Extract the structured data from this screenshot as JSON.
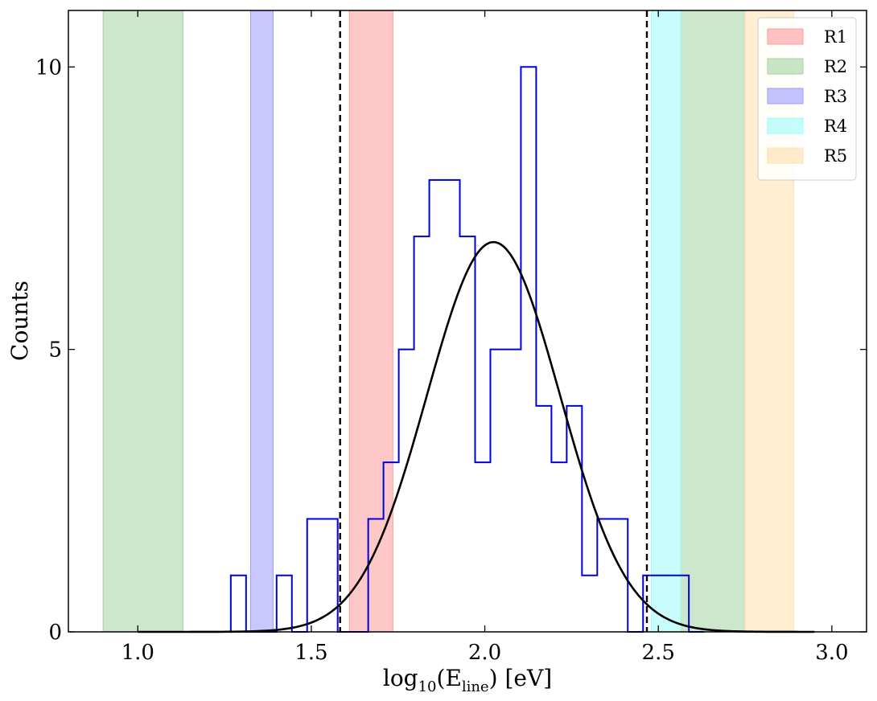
{
  "chart_data": {
    "type": "histogram",
    "xlabel_prefix": "log",
    "xlabel_sub1": "10",
    "xlabel_mid": "(E",
    "xlabel_sub2": "line",
    "xlabel_suffix": ") [eV]",
    "ylabel": "Counts",
    "xlim": [
      0.8,
      3.1
    ],
    "ylim": [
      0,
      11
    ],
    "xticks": [
      1.0,
      1.5,
      2.0,
      2.5,
      3.0
    ],
    "xtick_labels": [
      "1.0",
      "1.5",
      "2.0",
      "2.5",
      "3.0"
    ],
    "yticks": [
      0,
      5,
      10
    ],
    "ytick_labels": [
      "0",
      "5",
      "10"
    ],
    "bin_edges": [
      1.268,
      1.312,
      1.356,
      1.4,
      1.444,
      1.488,
      1.532,
      1.576,
      1.62,
      1.664,
      1.708,
      1.752,
      1.796,
      1.84,
      1.884,
      1.928,
      1.972,
      2.016,
      2.06,
      2.104,
      2.148,
      2.192,
      2.236,
      2.28,
      2.324,
      2.368,
      2.412,
      2.456,
      2.5,
      2.544,
      2.588,
      2.632
    ],
    "counts": [
      1,
      0,
      0,
      1,
      0,
      2,
      2,
      0,
      0,
      2,
      3,
      5,
      7,
      8,
      8,
      7,
      3,
      5,
      5,
      10,
      4,
      3,
      4,
      1,
      2,
      2,
      0,
      1,
      1,
      1,
      0
    ],
    "gaussian_fit": {
      "amplitude": 6.9,
      "mean": 2.025,
      "sigma": 0.192
    },
    "vlines": [
      1.583,
      2.467
    ],
    "regions": [
      {
        "name": "R1",
        "xmin": 1.61,
        "xmax": 1.735,
        "color": "#ff9b9b"
      },
      {
        "name": "R2",
        "xmin": 0.9,
        "xmax": 1.13,
        "color": "#a3d3a3"
      },
      {
        "name": "R2",
        "xmin": 2.565,
        "xmax": 2.75,
        "color": "#a3d3a3"
      },
      {
        "name": "R3",
        "xmin": 1.325,
        "xmax": 1.39,
        "color": "#9b9bff"
      },
      {
        "name": "R4",
        "xmin": 2.48,
        "xmax": 2.565,
        "color": "#9cfcfc"
      },
      {
        "name": "R5",
        "xmin": 2.75,
        "xmax": 2.89,
        "color": "#ffe0ad"
      }
    ],
    "legend": [
      {
        "label": "R1",
        "color": "#ff9b9b"
      },
      {
        "label": "R2",
        "color": "#a3d3a3"
      },
      {
        "label": "R3",
        "color": "#9b9bff"
      },
      {
        "label": "R4",
        "color": "#9cfcfc"
      },
      {
        "label": "R5",
        "color": "#ffe0ad"
      }
    ],
    "legend_position": "top-right",
    "histogram_color": "#0000dd",
    "fit_color": "#000000"
  }
}
